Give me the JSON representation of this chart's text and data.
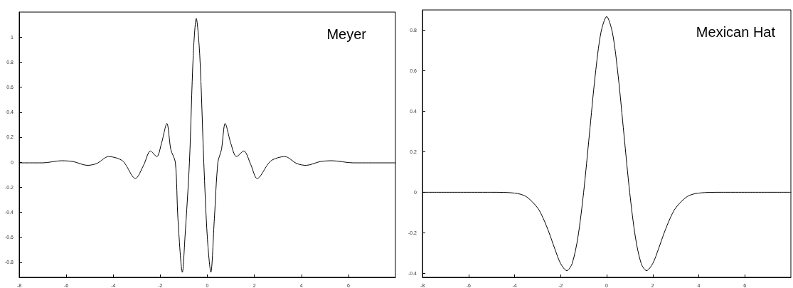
{
  "chart_data": [
    {
      "type": "line",
      "title": "Meyer",
      "color": "#000000",
      "marker": "none",
      "grid": false,
      "xlim": [
        -8,
        8
      ],
      "ylim": [
        -0.92,
        1.2
      ],
      "xticks": [
        -8,
        -6,
        -4,
        -2,
        0,
        2,
        4,
        6
      ],
      "yticks": [
        -0.8,
        -0.6,
        -0.4,
        -0.2,
        0,
        0.2,
        0.4,
        0.6,
        0.8,
        1
      ],
      "x": [
        -8,
        -7,
        -6.2,
        -5.7,
        -5.1,
        -4.7,
        -4.2,
        -3.6,
        -3.06,
        -2.7,
        -2.42,
        -2.15,
        -1.95,
        -1.72,
        -1.55,
        -1.36,
        -1.25,
        -1.06,
        -0.95,
        -0.76,
        -0.6,
        -0.47,
        -0.32,
        -0.15,
        0,
        0.15,
        0.3,
        0.45,
        0.6,
        0.76,
        1,
        1.24,
        1.55,
        1.85,
        2.12,
        2.7,
        3.3,
        3.8,
        4.2,
        4.8,
        5.3,
        6.2,
        8
      ],
      "values": [
        -0.005,
        -0.005,
        0.012,
        0.005,
        -0.025,
        -0.01,
        0.045,
        0.01,
        -0.13,
        -0.02,
        0.09,
        0.045,
        0.15,
        0.31,
        0.1,
        0,
        -0.45,
        -0.88,
        -0.6,
        0,
        0.85,
        1.15,
        0.85,
        0,
        -0.6,
        -0.88,
        -0.45,
        0,
        0.1,
        0.31,
        0.15,
        0.045,
        0.09,
        -0.02,
        -0.13,
        0.01,
        0.045,
        -0.01,
        -0.025,
        0.005,
        0.012,
        -0.005,
        -0.005
      ]
    },
    {
      "type": "line",
      "title": "Mexican Hat",
      "color": "#000000",
      "marker": "none",
      "grid": false,
      "xlim": [
        -8,
        8
      ],
      "ylim": [
        -0.42,
        0.9
      ],
      "xticks": [
        -8,
        -6,
        -4,
        -2,
        0,
        2,
        4,
        6
      ],
      "yticks": [
        -0.4,
        -0.2,
        0,
        0.2,
        0.4,
        0.6,
        0.8
      ],
      "x": [
        -8,
        -5,
        -4,
        -3.5,
        -3,
        -2.75,
        -2.5,
        -2.25,
        -2,
        -1.73,
        -1.5,
        -1.25,
        -1,
        -0.75,
        -0.5,
        -0.25,
        0,
        0.25,
        0.5,
        0.75,
        1,
        1.25,
        1.5,
        1.73,
        2,
        2.25,
        2.5,
        2.75,
        3,
        3.5,
        4,
        5,
        8
      ],
      "values": [
        0,
        0,
        -0.004,
        -0.021,
        -0.077,
        -0.13,
        -0.2,
        -0.28,
        -0.352,
        -0.387,
        -0.352,
        -0.223,
        0,
        0.286,
        0.574,
        0.788,
        0.867,
        0.788,
        0.574,
        0.286,
        0,
        -0.223,
        -0.352,
        -0.387,
        -0.352,
        -0.28,
        -0.2,
        -0.13,
        -0.077,
        -0.021,
        -0.004,
        0,
        0
      ]
    }
  ]
}
